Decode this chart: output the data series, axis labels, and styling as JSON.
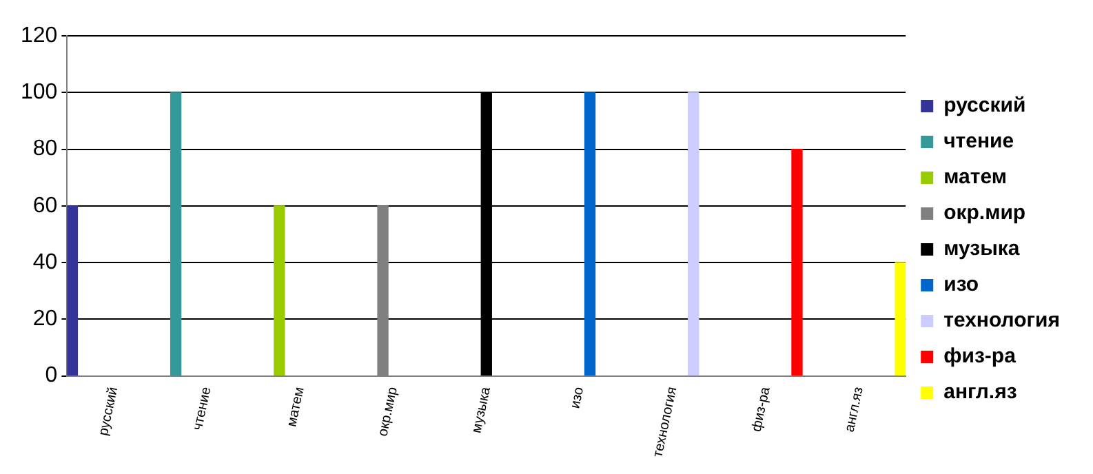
{
  "chart_data": {
    "type": "bar",
    "categories": [
      "русский",
      "чтение",
      "матем",
      "окр.мир",
      "музыка",
      "изо",
      "технология",
      "физ-ра",
      "англ.яз"
    ],
    "series": [
      {
        "name": "русский",
        "color": "#333399",
        "values": [
          60,
          null,
          null,
          null,
          null,
          null,
          null,
          null,
          null
        ]
      },
      {
        "name": "чтение",
        "color": "#339999",
        "values": [
          null,
          100,
          null,
          null,
          null,
          null,
          null,
          null,
          null
        ]
      },
      {
        "name": "матем",
        "color": "#99cc00",
        "values": [
          null,
          null,
          60,
          null,
          null,
          null,
          null,
          null,
          null
        ]
      },
      {
        "name": "окр.мир",
        "color": "#808080",
        "values": [
          null,
          null,
          null,
          60,
          null,
          null,
          null,
          null,
          null
        ]
      },
      {
        "name": "музыка",
        "color": "#000000",
        "values": [
          null,
          null,
          null,
          null,
          100,
          null,
          null,
          null,
          null
        ]
      },
      {
        "name": "изо",
        "color": "#0066cc",
        "values": [
          null,
          null,
          null,
          null,
          null,
          100,
          null,
          null,
          null
        ]
      },
      {
        "name": "технология",
        "color": "#ccccff",
        "values": [
          null,
          null,
          null,
          null,
          null,
          null,
          100,
          null,
          null
        ]
      },
      {
        "name": "физ-ра",
        "color": "#ff0000",
        "values": [
          null,
          null,
          null,
          null,
          null,
          null,
          null,
          80,
          null
        ]
      },
      {
        "name": "англ.яз",
        "color": "#ffff00",
        "values": [
          null,
          null,
          null,
          null,
          null,
          null,
          null,
          null,
          40
        ]
      }
    ],
    "ylim": [
      0,
      120
    ],
    "yticks": [
      0,
      20,
      40,
      60,
      80,
      100,
      120
    ],
    "grid": "y",
    "legend": "right"
  }
}
